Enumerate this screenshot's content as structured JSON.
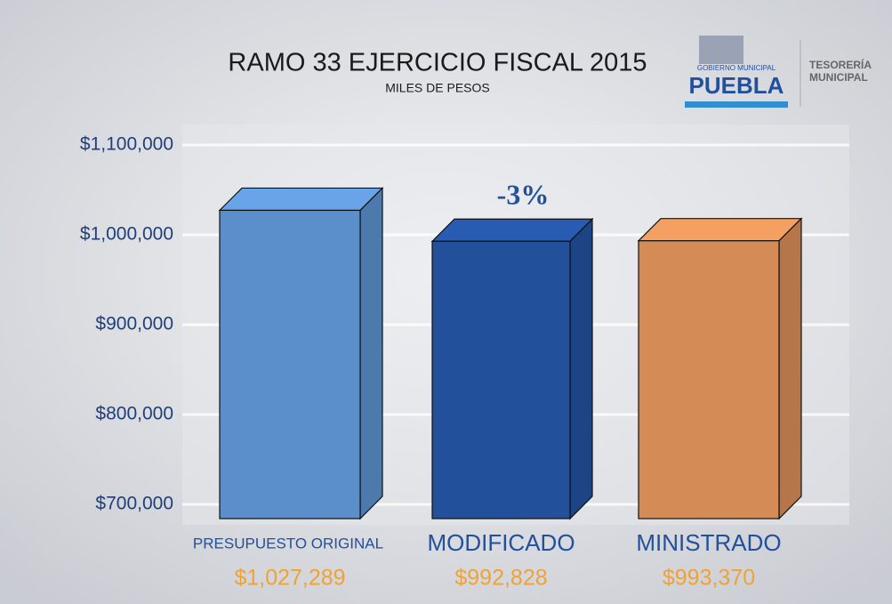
{
  "chart_data": {
    "type": "bar3d",
    "title": "RAMO 33 EJERCICIO FISCAL 2015",
    "subtitle": "MILES DE PESOS",
    "categories": [
      "PRESUPUESTO ORIGINAL",
      "MODIFICADO",
      "MINISTRADO"
    ],
    "values": [
      1027289,
      992828,
      993370
    ],
    "value_labels": [
      "$1,027,289",
      "$992,828",
      "$993,370"
    ],
    "colors": [
      "#5b8fcb",
      "#22509b",
      "#d58b56"
    ],
    "annotation": "-3%",
    "ylim": [
      700000,
      1100000
    ],
    "yticks": [
      {
        "value": 700000,
        "label": "$700,000"
      },
      {
        "value": 800000,
        "label": "$800,000"
      },
      {
        "value": 900000,
        "label": "$900,000"
      },
      {
        "value": 1000000,
        "label": "$1,000,000"
      },
      {
        "value": 1100000,
        "label": "$1,100,000"
      }
    ],
    "grid": true
  },
  "logo": {
    "top": "GOBIERNO MUNICIPAL",
    "name": "PUEBLA",
    "side": [
      "TESORERÍA",
      "MUNICIPAL"
    ]
  }
}
